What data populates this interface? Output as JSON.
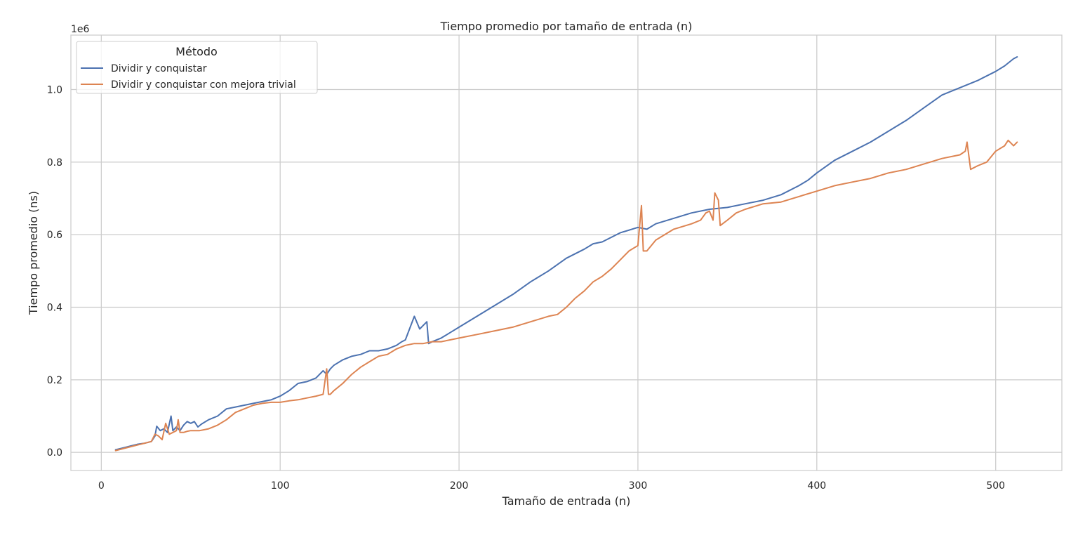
{
  "chart_data": {
    "type": "line",
    "title": "Tiempo promedio por tamaño de entrada (n)",
    "xlabel": "Tamaño de entrada (n)",
    "ylabel": "Tiempo promedio (ns)",
    "y_offset_label": "1e6",
    "xlim": [
      -17,
      537
    ],
    "ylim": [
      -0.05,
      1.15
    ],
    "xticks": [
      0,
      100,
      200,
      300,
      400,
      500
    ],
    "xtick_labels": [
      "0",
      "100",
      "200",
      "300",
      "400",
      "500"
    ],
    "yticks": [
      0.0,
      0.2,
      0.4,
      0.6,
      0.8,
      1.0
    ],
    "ytick_labels": [
      "0.0",
      "0.2",
      "0.4",
      "0.6",
      "0.8",
      "1.0"
    ],
    "grid": true,
    "legend": {
      "title": "Método",
      "placement": "top-left"
    },
    "series": [
      {
        "name": "Dividir y conquistar",
        "color": "#4c72b0",
        "x": [
          8,
          12,
          16,
          20,
          24,
          28,
          30,
          31,
          33,
          35,
          37,
          39,
          40,
          42,
          44,
          46,
          48,
          50,
          52,
          54,
          56,
          60,
          65,
          70,
          75,
          80,
          85,
          90,
          95,
          100,
          105,
          110,
          115,
          120,
          124,
          126,
          128,
          130,
          135,
          140,
          145,
          150,
          155,
          160,
          165,
          168,
          170,
          175,
          178,
          180,
          182,
          183,
          185,
          190,
          195,
          200,
          210,
          220,
          230,
          240,
          250,
          260,
          270,
          275,
          280,
          290,
          300,
          305,
          310,
          320,
          330,
          340,
          350,
          360,
          370,
          380,
          390,
          395,
          400,
          410,
          420,
          430,
          440,
          450,
          460,
          470,
          480,
          490,
          500,
          505,
          510,
          512
        ],
        "y": [
          0.007,
          0.012,
          0.017,
          0.022,
          0.025,
          0.03,
          0.045,
          0.072,
          0.06,
          0.065,
          0.055,
          0.1,
          0.06,
          0.07,
          0.06,
          0.075,
          0.085,
          0.08,
          0.085,
          0.07,
          0.078,
          0.09,
          0.1,
          0.12,
          0.125,
          0.13,
          0.135,
          0.14,
          0.145,
          0.155,
          0.17,
          0.19,
          0.195,
          0.205,
          0.225,
          0.215,
          0.23,
          0.24,
          0.255,
          0.265,
          0.27,
          0.28,
          0.28,
          0.285,
          0.295,
          0.305,
          0.31,
          0.375,
          0.34,
          0.35,
          0.36,
          0.3,
          0.305,
          0.315,
          0.33,
          0.345,
          0.375,
          0.405,
          0.435,
          0.47,
          0.5,
          0.535,
          0.56,
          0.575,
          0.58,
          0.605,
          0.62,
          0.615,
          0.63,
          0.645,
          0.66,
          0.67,
          0.675,
          0.685,
          0.695,
          0.71,
          0.735,
          0.75,
          0.77,
          0.805,
          0.83,
          0.855,
          0.885,
          0.915,
          0.95,
          0.985,
          1.005,
          1.025,
          1.05,
          1.065,
          1.085,
          1.09
        ]
      },
      {
        "name": "Dividir y conquistar con mejora trivial",
        "color": "#dd8452",
        "x": [
          8,
          12,
          16,
          20,
          24,
          28,
          30,
          32,
          34,
          36,
          38,
          40,
          42,
          43,
          44,
          46,
          48,
          50,
          55,
          60,
          65,
          70,
          75,
          80,
          85,
          90,
          95,
          100,
          105,
          110,
          115,
          120,
          124,
          126,
          127,
          128,
          130,
          135,
          140,
          145,
          150,
          155,
          160,
          165,
          170,
          175,
          180,
          185,
          190,
          195,
          200,
          210,
          220,
          230,
          240,
          250,
          255,
          260,
          265,
          270,
          275,
          280,
          285,
          290,
          295,
          300,
          302,
          303,
          305,
          310,
          320,
          330,
          335,
          338,
          340,
          342,
          343,
          345,
          346,
          350,
          355,
          360,
          370,
          380,
          390,
          400,
          410,
          420,
          430,
          440,
          450,
          460,
          470,
          480,
          483,
          484,
          486,
          490,
          495,
          500,
          505,
          507,
          510,
          512
        ],
        "y": [
          0.005,
          0.01,
          0.015,
          0.02,
          0.025,
          0.03,
          0.05,
          0.045,
          0.035,
          0.08,
          0.05,
          0.055,
          0.06,
          0.09,
          0.055,
          0.055,
          0.058,
          0.06,
          0.06,
          0.065,
          0.075,
          0.09,
          0.11,
          0.12,
          0.13,
          0.135,
          0.138,
          0.138,
          0.142,
          0.145,
          0.15,
          0.155,
          0.16,
          0.23,
          0.16,
          0.16,
          0.17,
          0.19,
          0.215,
          0.235,
          0.25,
          0.265,
          0.27,
          0.285,
          0.295,
          0.3,
          0.3,
          0.305,
          0.305,
          0.31,
          0.315,
          0.325,
          0.335,
          0.345,
          0.36,
          0.375,
          0.38,
          0.4,
          0.425,
          0.445,
          0.47,
          0.485,
          0.505,
          0.53,
          0.555,
          0.57,
          0.68,
          0.555,
          0.555,
          0.585,
          0.615,
          0.63,
          0.64,
          0.66,
          0.665,
          0.64,
          0.715,
          0.695,
          0.625,
          0.64,
          0.66,
          0.67,
          0.685,
          0.69,
          0.705,
          0.72,
          0.735,
          0.745,
          0.755,
          0.77,
          0.78,
          0.795,
          0.81,
          0.82,
          0.83,
          0.855,
          0.78,
          0.79,
          0.8,
          0.83,
          0.845,
          0.86,
          0.845,
          0.855
        ]
      }
    ]
  }
}
